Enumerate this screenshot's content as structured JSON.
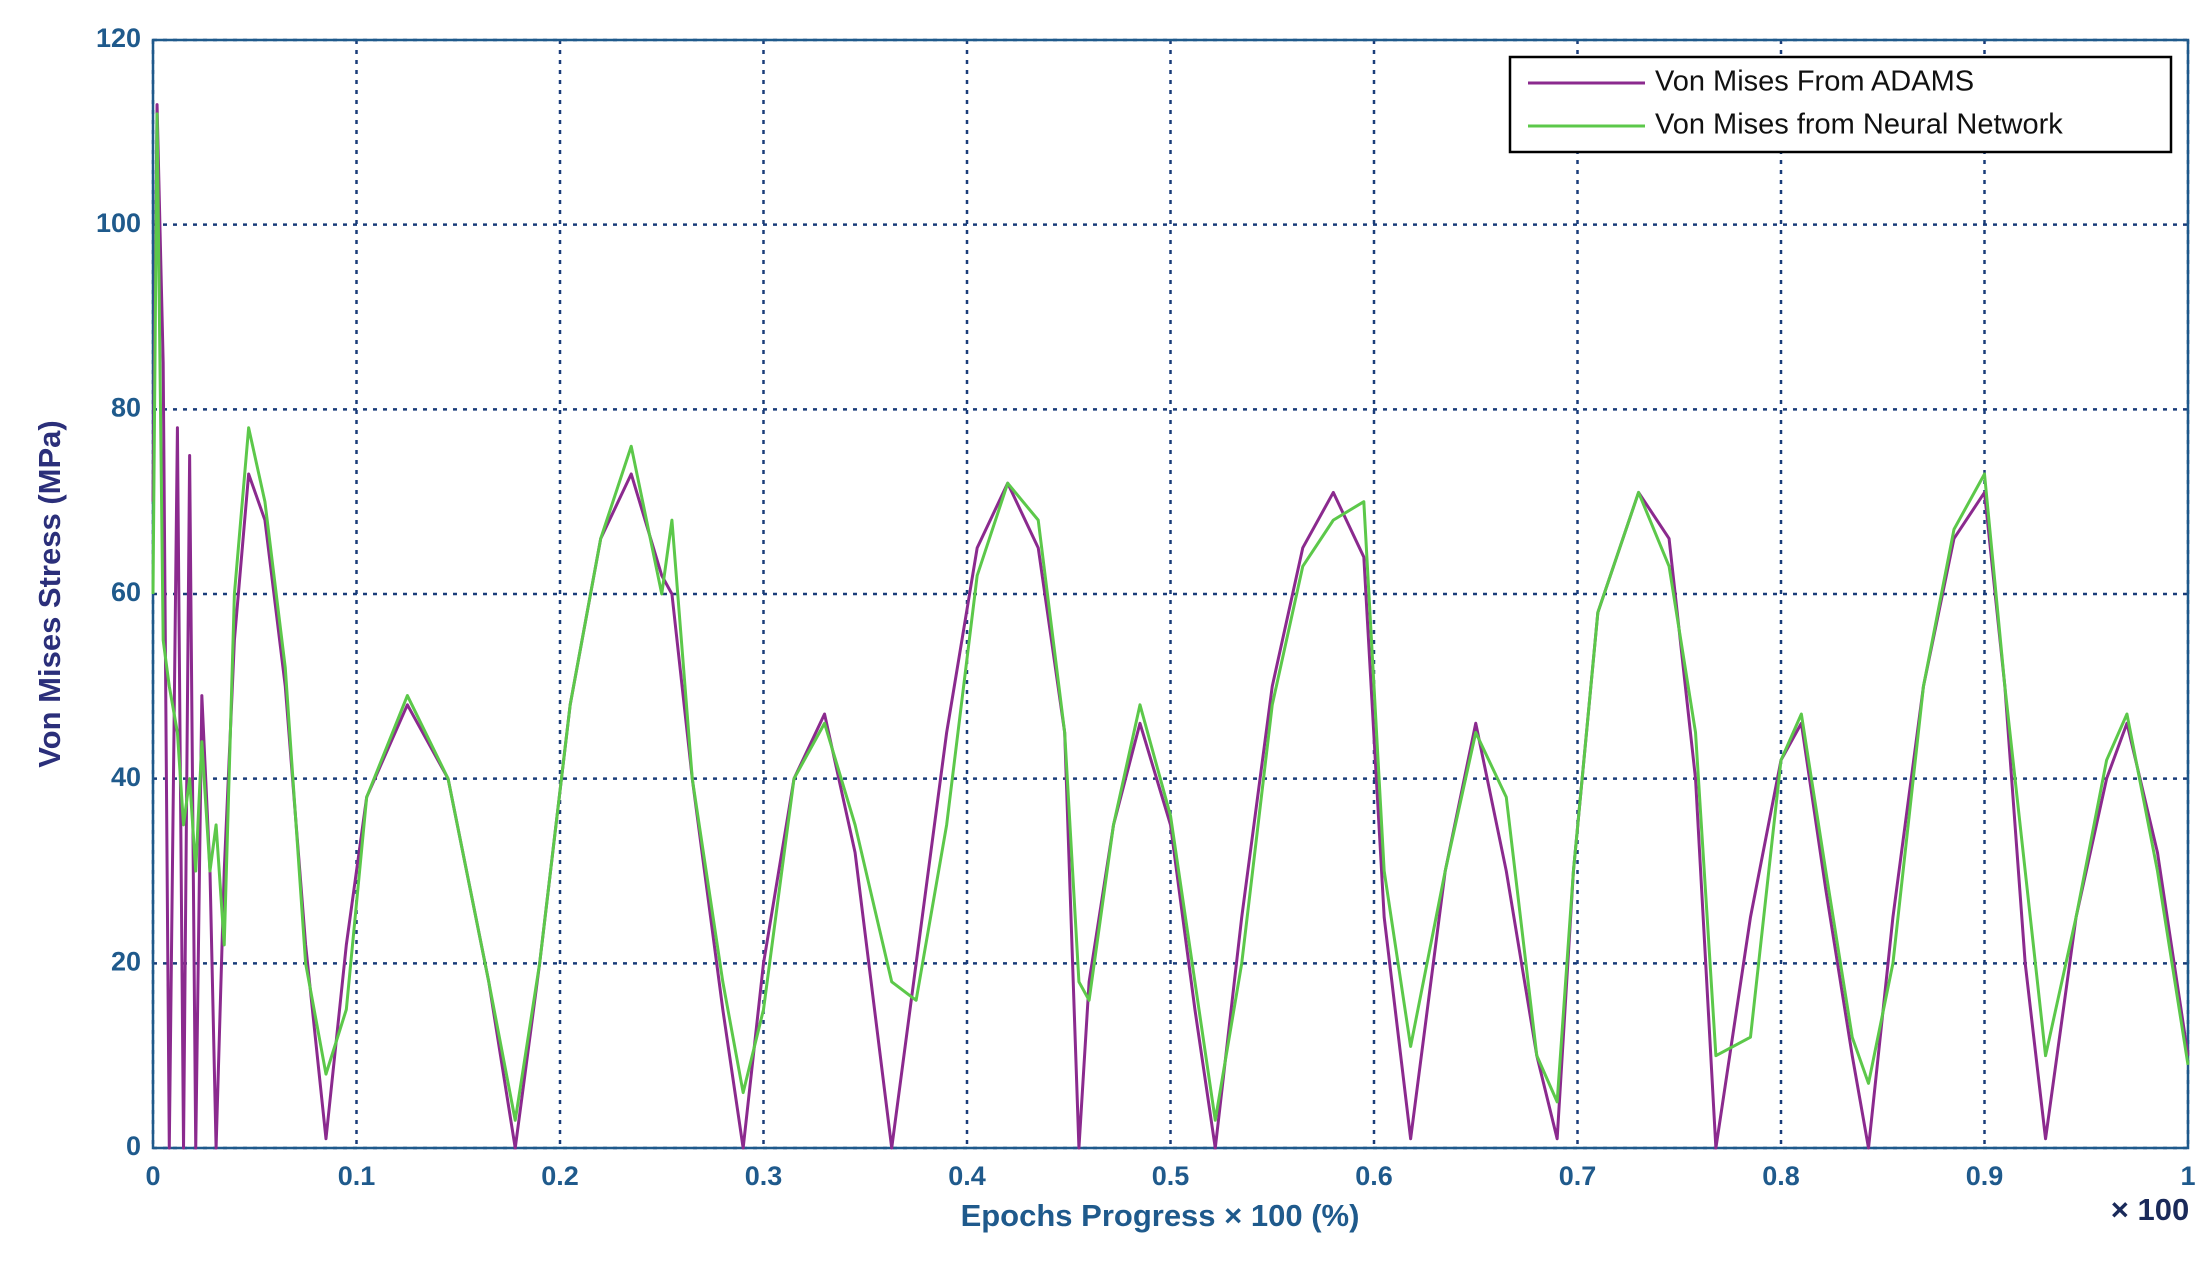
{
  "chart_data": {
    "type": "line",
    "xlabel": "Epochs Progress × 100 (%)",
    "ylabel": "Von Mises Stress (MPa)",
    "annotation": "× 100",
    "x": [
      0,
      0.002,
      0.005,
      0.008,
      0.012,
      0.015,
      0.018,
      0.021,
      0.024,
      0.028,
      0.031,
      0.035,
      0.04,
      0.047,
      0.055,
      0.065,
      0.075,
      0.085,
      0.095,
      0.105,
      0.125,
      0.145,
      0.165,
      0.178,
      0.19,
      0.205,
      0.22,
      0.235,
      0.25,
      0.255,
      0.265,
      0.28,
      0.29,
      0.3,
      0.315,
      0.33,
      0.345,
      0.363,
      0.375,
      0.39,
      0.405,
      0.42,
      0.435,
      0.448,
      0.455,
      0.46,
      0.472,
      0.485,
      0.5,
      0.512,
      0.522,
      0.535,
      0.55,
      0.565,
      0.58,
      0.595,
      0.605,
      0.618,
      0.635,
      0.65,
      0.665,
      0.68,
      0.69,
      0.698,
      0.71,
      0.73,
      0.745,
      0.758,
      0.768,
      0.785,
      0.8,
      0.81,
      0.822,
      0.835,
      0.843,
      0.855,
      0.87,
      0.885,
      0.9,
      0.91,
      0.92,
      0.93,
      0.945,
      0.96,
      0.97,
      0.985,
      1
    ],
    "series": [
      {
        "name": "Von Mises From ADAMS",
        "color": "#8b2a8e",
        "values": [
          70,
          113,
          85,
          0,
          78,
          0,
          75,
          0,
          49,
          30,
          0,
          30,
          55,
          73,
          68,
          50,
          22,
          1,
          22,
          38,
          48,
          40,
          18,
          0,
          20,
          48,
          66,
          73,
          62,
          60,
          40,
          15,
          0,
          20,
          40,
          47,
          32,
          0,
          20,
          45,
          65,
          72,
          65,
          45,
          0,
          18,
          35,
          46,
          35,
          15,
          0,
          25,
          50,
          65,
          71,
          64,
          25,
          1,
          30,
          46,
          30,
          10,
          1,
          30,
          58,
          71,
          66,
          40,
          0,
          25,
          42,
          46,
          28,
          10,
          0,
          25,
          50,
          66,
          71,
          50,
          20,
          1,
          25,
          40,
          46,
          32,
          10
        ]
      },
      {
        "name": "Von Mises from Neural Network",
        "color": "#5cc84a",
        "values": [
          60,
          112,
          55,
          50,
          45,
          35,
          40,
          30,
          44,
          30,
          35,
          22,
          60,
          78,
          70,
          52,
          20,
          8,
          15,
          38,
          49,
          40,
          18,
          3,
          20,
          48,
          66,
          76,
          60,
          68,
          40,
          18,
          6,
          15,
          40,
          46,
          35,
          18,
          16,
          35,
          62,
          72,
          68,
          45,
          18,
          16,
          35,
          48,
          36,
          18,
          3,
          20,
          48,
          63,
          68,
          70,
          30,
          11,
          30,
          45,
          38,
          10,
          5,
          30,
          58,
          71,
          63,
          45,
          10,
          12,
          42,
          47,
          30,
          12,
          7,
          20,
          50,
          67,
          73,
          50,
          30,
          10,
          25,
          42,
          47,
          30,
          9
        ]
      }
    ],
    "xlim": [
      0,
      1
    ],
    "ylim": [
      0,
      120
    ],
    "xticks": [
      0,
      0.1,
      0.2,
      0.3,
      0.4,
      0.5,
      0.6,
      0.7,
      0.8,
      0.9,
      1
    ],
    "yticks": [
      0,
      20,
      40,
      60,
      80,
      100,
      120
    ],
    "grid": true,
    "legend": "upper right"
  }
}
